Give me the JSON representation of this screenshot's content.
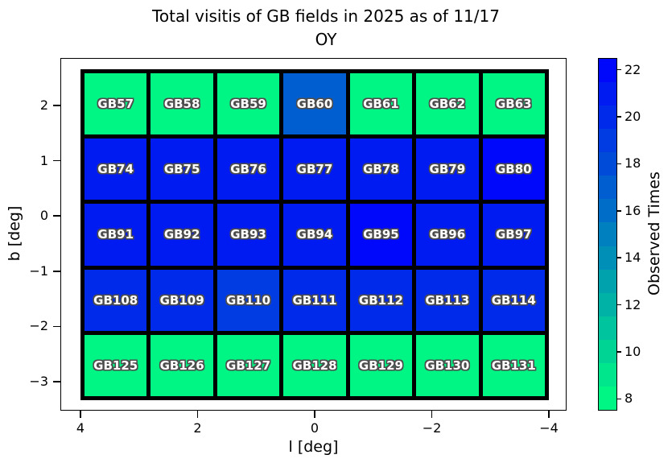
{
  "figure_title": {
    "line1": "Total visitis of GB fields in 2025 as of 11/17",
    "line2": "OY"
  },
  "chart_data": {
    "type": "heatmap",
    "title": "Total visitis of GB fields in 2025 as of 11/17 OY",
    "xlabel": "l [deg]",
    "ylabel": "b [deg]",
    "colorbar_label": "Observed Times",
    "colormap": "winter_r",
    "value_range": [
      7.5,
      22.5
    ],
    "x_axis_inverted": true,
    "grid": {
      "columns": 7,
      "rows": 5,
      "l_range": [
        4,
        -4
      ],
      "b_range": [
        2.66,
        -3.34
      ]
    },
    "x_ticks": [
      {
        "label": "4",
        "value": 4
      },
      {
        "label": "2",
        "value": 2
      },
      {
        "label": "0",
        "value": 0
      },
      {
        "label": "−2",
        "value": -2
      },
      {
        "label": "−4",
        "value": -4
      }
    ],
    "y_ticks": [
      {
        "label": "2",
        "value": 2
      },
      {
        "label": "1",
        "value": 1
      },
      {
        "label": "0",
        "value": 0
      },
      {
        "label": "−1",
        "value": -1
      },
      {
        "label": "−2",
        "value": -2
      },
      {
        "label": "−3",
        "value": -3
      }
    ],
    "colorbar_ticks": [
      {
        "label": "22",
        "value": 22
      },
      {
        "label": "20",
        "value": 20
      },
      {
        "label": "18",
        "value": 18
      },
      {
        "label": "16",
        "value": 16
      },
      {
        "label": "14",
        "value": 14
      },
      {
        "label": "12",
        "value": 12
      },
      {
        "label": "10",
        "value": 10
      },
      {
        "label": "8",
        "value": 8
      }
    ],
    "colorbar_band_values": [
      8,
      9,
      10,
      11,
      12,
      13,
      14,
      15,
      16,
      17,
      18,
      19,
      20,
      21,
      22
    ],
    "colorbar_band_colors": [
      "#00F684",
      "#00E68C",
      "#00D495",
      "#00C49D",
      "#00B2A6",
      "#00A2AE",
      "#0090B7",
      "#0080BF",
      "#006EC8",
      "#005ED0",
      "#004CD9",
      "#003CE1",
      "#002AEA",
      "#001AF2",
      "#0008FB"
    ],
    "rows": [
      {
        "fields": [
          {
            "name": "GB57",
            "observed_times": 8
          },
          {
            "name": "GB58",
            "observed_times": 8
          },
          {
            "name": "GB59",
            "observed_times": 8
          },
          {
            "name": "GB60",
            "observed_times": 17
          },
          {
            "name": "GB61",
            "observed_times": 8
          },
          {
            "name": "GB62",
            "observed_times": 8
          },
          {
            "name": "GB63",
            "observed_times": 8
          }
        ]
      },
      {
        "fields": [
          {
            "name": "GB74",
            "observed_times": 21
          },
          {
            "name": "GB75",
            "observed_times": 21
          },
          {
            "name": "GB76",
            "observed_times": 21
          },
          {
            "name": "GB77",
            "observed_times": 21
          },
          {
            "name": "GB78",
            "observed_times": 21
          },
          {
            "name": "GB79",
            "observed_times": 21
          },
          {
            "name": "GB80",
            "observed_times": 22
          }
        ]
      },
      {
        "fields": [
          {
            "name": "GB91",
            "observed_times": 21
          },
          {
            "name": "GB92",
            "observed_times": 21
          },
          {
            "name": "GB93",
            "observed_times": 21
          },
          {
            "name": "GB94",
            "observed_times": 21
          },
          {
            "name": "GB95",
            "observed_times": 22
          },
          {
            "name": "GB96",
            "observed_times": 21
          },
          {
            "name": "GB97",
            "observed_times": 21
          }
        ]
      },
      {
        "fields": [
          {
            "name": "GB108",
            "observed_times": 20
          },
          {
            "name": "GB109",
            "observed_times": 20
          },
          {
            "name": "GB110",
            "observed_times": 19
          },
          {
            "name": "GB111",
            "observed_times": 20
          },
          {
            "name": "GB112",
            "observed_times": 20
          },
          {
            "name": "GB113",
            "observed_times": 20
          },
          {
            "name": "GB114",
            "observed_times": 20
          }
        ]
      },
      {
        "fields": [
          {
            "name": "GB125",
            "observed_times": 8
          },
          {
            "name": "GB126",
            "observed_times": 8
          },
          {
            "name": "GB127",
            "observed_times": 8
          },
          {
            "name": "GB128",
            "observed_times": 8
          },
          {
            "name": "GB129",
            "observed_times": 8
          },
          {
            "name": "GB130",
            "observed_times": 8
          },
          {
            "name": "GB131",
            "observed_times": 8
          }
        ]
      }
    ]
  }
}
